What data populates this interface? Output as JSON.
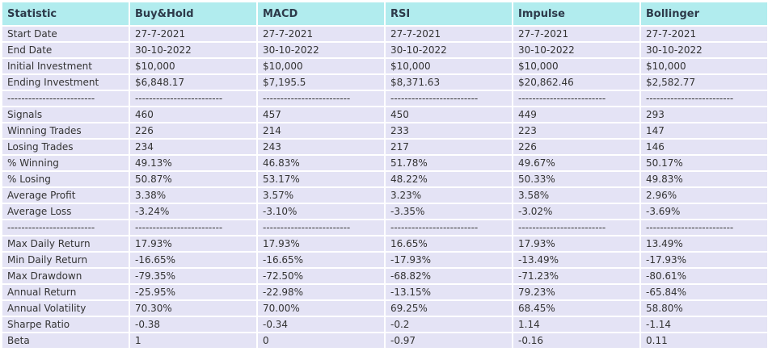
{
  "headers": [
    "Statistic",
    "Buy&Hold",
    "MACD",
    "RSI",
    "Impulse",
    "Bollinger"
  ],
  "rows": [
    [
      "Start Date",
      "27-7-2021",
      "27-7-2021",
      "27-7-2021",
      "27-7-2021",
      "27-7-2021"
    ],
    [
      "End Date",
      "30-10-2022",
      "30-10-2022",
      "30-10-2022",
      "30-10-2022",
      "30-10-2022"
    ],
    [
      "Initial Investment",
      "$10,000",
      "$10,000",
      "$10,000",
      "$10,000",
      "$10,000"
    ],
    [
      "Ending Investment",
      "$6,848.17",
      "$7,195.5",
      "$8,371.63",
      "$20,862.46",
      "$2,582.77"
    ],
    [
      "-------------------------",
      "-------------------------",
      "-------------------------",
      "-------------------------",
      "-------------------------",
      "-------------------------"
    ],
    [
      "Signals",
      "460",
      "457",
      "450",
      "449",
      "293"
    ],
    [
      "Winning Trades",
      "226",
      "214",
      "233",
      "223",
      "147"
    ],
    [
      "Losing Trades",
      "234",
      "243",
      "217",
      "226",
      "146"
    ],
    [
      "% Winning",
      "49.13%",
      "46.83%",
      "51.78%",
      "49.67%",
      "50.17%"
    ],
    [
      "% Losing",
      "50.87%",
      "53.17%",
      "48.22%",
      "50.33%",
      "49.83%"
    ],
    [
      "Average Profit",
      "3.38%",
      "3.57%",
      "3.23%",
      "3.58%",
      "2.96%"
    ],
    [
      "Average Loss",
      "-3.24%",
      "-3.10%",
      "-3.35%",
      "-3.02%",
      "-3.69%"
    ],
    [
      "-------------------------",
      "-------------------------",
      "-------------------------",
      "-------------------------",
      "-------------------------",
      "-------------------------"
    ],
    [
      "Max Daily Return",
      "17.93%",
      "17.93%",
      "16.65%",
      "17.93%",
      "13.49%"
    ],
    [
      "Min Daily Return",
      "-16.65%",
      "-16.65%",
      "-17.93%",
      "-13.49%",
      "-17.93%"
    ],
    [
      "Max Drawdown",
      "-79.35%",
      "-72.50%",
      "-68.82%",
      "-71.23%",
      "-80.61%"
    ],
    [
      "Annual Return",
      "-25.95%",
      "-22.98%",
      "-13.15%",
      "79.23%",
      "-65.84%"
    ],
    [
      "Annual Volatility",
      "70.30%",
      "70.00%",
      "69.25%",
      "68.45%",
      "58.80%"
    ],
    [
      "Sharpe Ratio",
      "-0.38",
      "-0.34",
      "-0.2",
      "1.14",
      "-1.14"
    ],
    [
      "Beta",
      "1",
      "0",
      "-0.97",
      "-0.16",
      "0.11"
    ]
  ]
}
